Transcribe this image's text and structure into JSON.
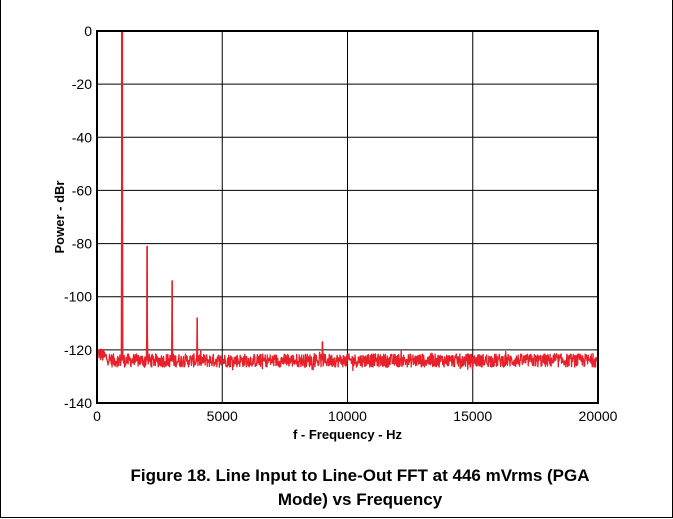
{
  "chart_data": {
    "type": "line",
    "title": "",
    "xlabel": "f - Frequency - Hz",
    "ylabel": "Power - dBr",
    "xlim": [
      0,
      20000
    ],
    "ylim": [
      -140,
      0
    ],
    "xticks": [
      0,
      5000,
      10000,
      15000,
      20000
    ],
    "yticks": [
      0,
      -20,
      -40,
      -60,
      -80,
      -100,
      -120,
      -140
    ],
    "xtick_labels": [
      "0",
      "5000",
      "10000",
      "15000",
      "20000"
    ],
    "ytick_labels": [
      "0",
      "-20",
      "-40",
      "-60",
      "-80",
      "-100",
      "-120",
      "-140"
    ],
    "grid": true,
    "legend": "none",
    "series": [
      {
        "color": "#e8202a",
        "noise_floor_db": -124,
        "peaks": [
          {
            "x": 0,
            "y": -104
          },
          {
            "x": 1000,
            "y": 0
          },
          {
            "x": 2000,
            "y": -81
          },
          {
            "x": 3000,
            "y": -94
          },
          {
            "x": 4000,
            "y": -108
          },
          {
            "x": 9000,
            "y": -117
          }
        ]
      }
    ]
  },
  "caption": {
    "line1": "Figure 18. Line Input to Line-Out FFT at 446 mVrms (PGA",
    "line2": "Mode) vs Frequency"
  }
}
